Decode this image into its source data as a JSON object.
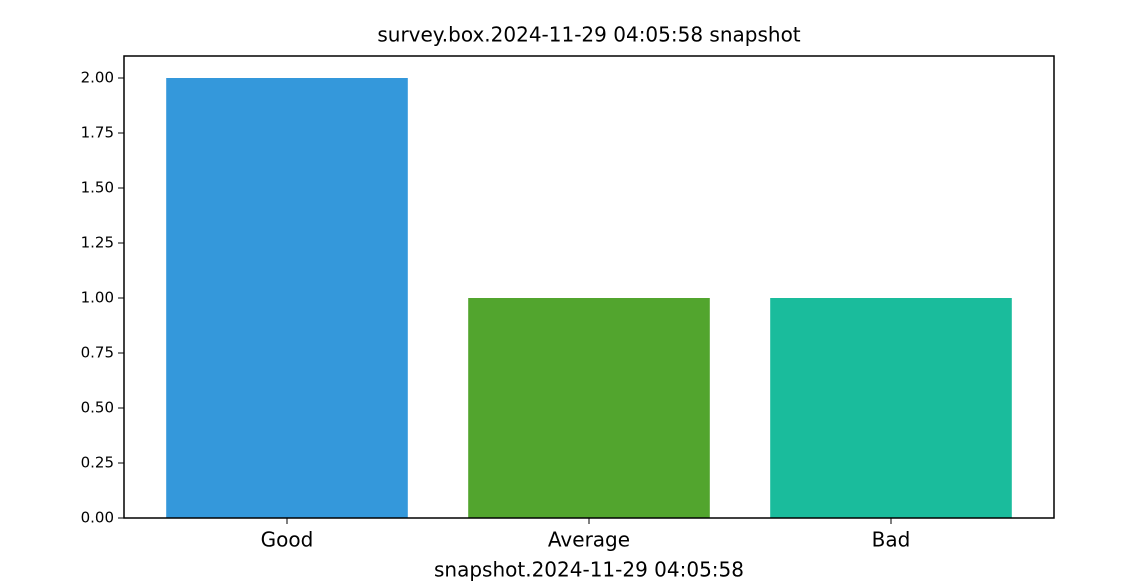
{
  "chart_data": {
    "type": "bar",
    "title": "survey.box.2024-11-29 04:05:58 snapshot",
    "x_label": "snapshot.2024-11-29 04:05:58",
    "categories": [
      "Good",
      "Average",
      "Bad"
    ],
    "values": [
      2,
      1,
      1
    ],
    "colors": [
      "#3498db",
      "#52a52e",
      "#1abc9c"
    ],
    "ylim": [
      0,
      2.1
    ],
    "yticks": [
      {
        "value": 0,
        "label": "0.00"
      },
      {
        "value": 0.25,
        "label": "0.25"
      },
      {
        "value": 0.5,
        "label": "0.50"
      },
      {
        "value": 0.75,
        "label": "0.75"
      },
      {
        "value": 1,
        "label": "1.00"
      },
      {
        "value": 1.25,
        "label": "1.25"
      },
      {
        "value": 1.5,
        "label": "1.50"
      },
      {
        "value": 1.75,
        "label": "1.75"
      },
      {
        "value": 2,
        "label": "2.00"
      }
    ],
    "grid": false
  }
}
